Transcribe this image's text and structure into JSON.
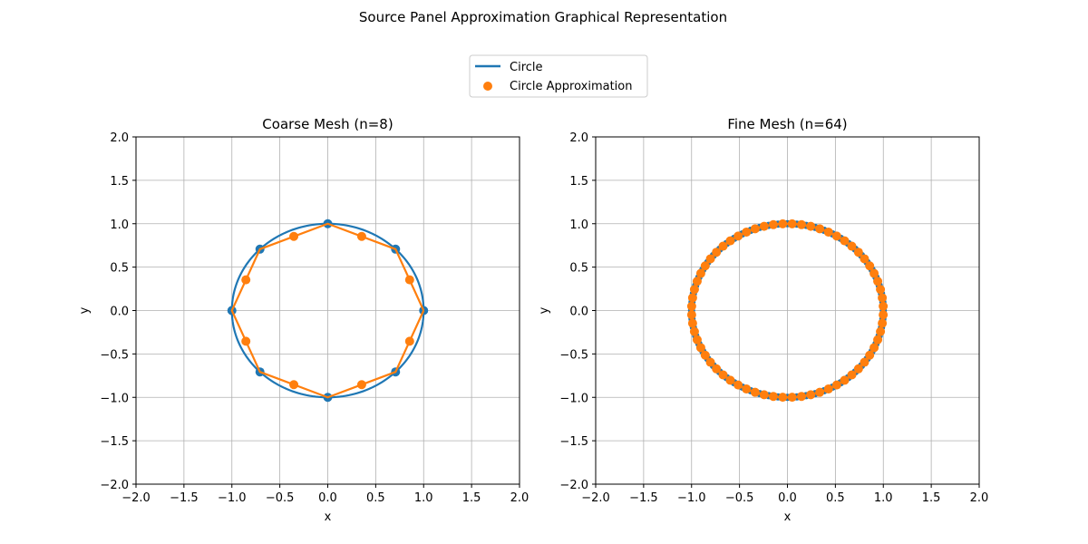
{
  "figure": {
    "title": "Source Panel Approximation Graphical Representation"
  },
  "legend": {
    "placement": "top-center",
    "entries": [
      {
        "label": "Circle",
        "kind": "line",
        "color": "#1f77b4"
      },
      {
        "label": "Circle Approximation",
        "kind": "marker",
        "color": "#ff7f0e"
      }
    ]
  },
  "colors": {
    "circle": "#1f77b4",
    "approximation": "#ff7f0e",
    "grid": "#b0b0b0"
  },
  "chart_data": [
    {
      "type": "line",
      "title": "Coarse Mesh (n=8)",
      "xlabel": "x",
      "ylabel": "y",
      "xlim": [
        -2.0,
        2.0
      ],
      "ylim": [
        -2.0,
        2.0
      ],
      "xticks": [
        -2.0,
        -1.5,
        -1.0,
        -0.5,
        0.0,
        0.5,
        1.0,
        1.5,
        2.0
      ],
      "yticks": [
        -2.0,
        -1.5,
        -1.0,
        -0.5,
        0.0,
        0.5,
        1.0,
        1.5,
        2.0
      ],
      "xtick_labels": [
        "−2.0",
        "−1.5",
        "−1.0",
        "−0.5",
        "0.0",
        "0.5",
        "1.0",
        "1.5",
        "2.0"
      ],
      "ytick_labels": [
        "−2.0",
        "−1.5",
        "−1.0",
        "−0.5",
        "0.0",
        "0.5",
        "1.0",
        "1.5",
        "2.0"
      ],
      "grid": true,
      "n": 8,
      "series": [
        {
          "name": "Circle",
          "kind": "line",
          "radius": 1.0
        },
        {
          "name": "Circle Approximation",
          "kind": "line+markers",
          "x": [
            1.0,
            0.707,
            0.0,
            -0.707,
            -1.0,
            -0.707,
            0.0,
            0.707,
            1.0
          ],
          "y": [
            0.0,
            0.707,
            1.0,
            0.707,
            0.0,
            -0.707,
            -1.0,
            -0.707,
            0.0
          ],
          "midpoints_x": [
            0.854,
            0.354,
            -0.354,
            -0.854,
            -0.854,
            -0.354,
            0.354,
            0.854
          ],
          "midpoints_y": [
            0.354,
            0.854,
            0.854,
            0.354,
            -0.354,
            -0.854,
            -0.854,
            -0.354
          ]
        }
      ]
    },
    {
      "type": "line",
      "title": "Fine Mesh (n=64)",
      "xlabel": "x",
      "ylabel": "y",
      "xlim": [
        -2.0,
        2.0
      ],
      "ylim": [
        -2.0,
        2.0
      ],
      "xticks": [
        -2.0,
        -1.5,
        -1.0,
        -0.5,
        0.0,
        0.5,
        1.0,
        1.5,
        2.0
      ],
      "yticks": [
        -2.0,
        -1.5,
        -1.0,
        -0.5,
        0.0,
        0.5,
        1.0,
        1.5,
        2.0
      ],
      "xtick_labels": [
        "−2.0",
        "−1.5",
        "−1.0",
        "−0.5",
        "0.0",
        "0.5",
        "1.0",
        "1.5",
        "2.0"
      ],
      "ytick_labels": [
        "−2.0",
        "−1.5",
        "−1.0",
        "−0.5",
        "0.0",
        "0.5",
        "1.0",
        "1.5",
        "2.0"
      ],
      "grid": true,
      "n": 64,
      "series": [
        {
          "name": "Circle",
          "kind": "line",
          "radius": 1.0
        },
        {
          "name": "Circle Approximation",
          "kind": "line+markers",
          "radius": 1.0,
          "points": 64
        }
      ]
    }
  ]
}
